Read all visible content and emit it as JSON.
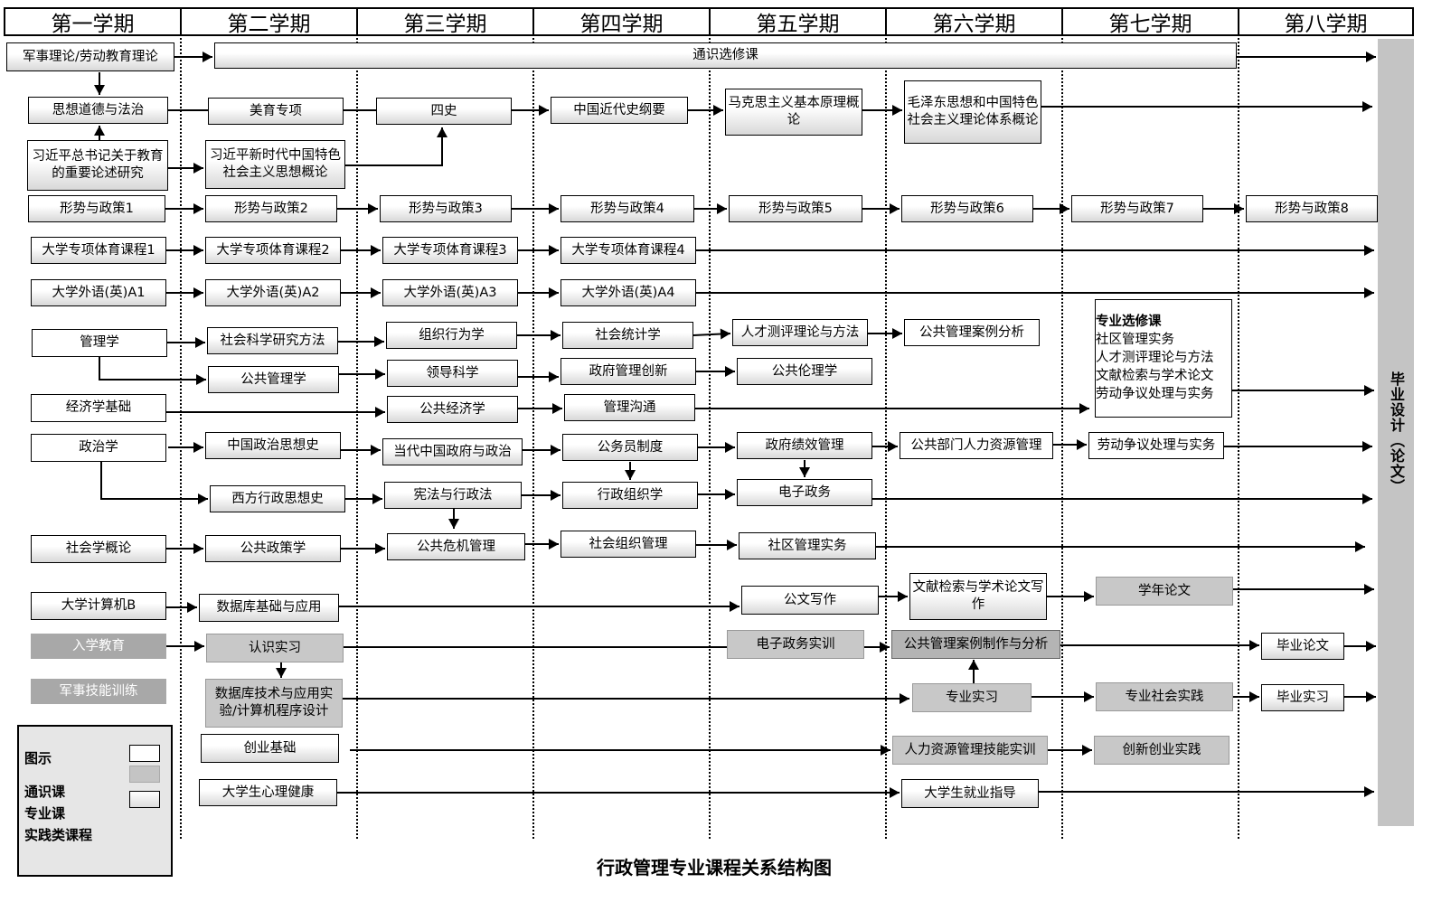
{
  "semesters": [
    "第一学期",
    "第二学期",
    "第三学期",
    "第四学期",
    "第五学期",
    "第六学期",
    "第七学期",
    "第八学期"
  ],
  "courses": [
    {
      "label": "军事理论/劳动教育理论",
      "type": "general"
    },
    {
      "label": "通识选修课",
      "type": "general"
    },
    {
      "label": "思想道德与法治",
      "type": "general"
    },
    {
      "label": "美育专项",
      "type": "general"
    },
    {
      "label": "四史",
      "type": "general"
    },
    {
      "label": "中国近代史纲要",
      "type": "general"
    },
    {
      "label": "马克思主义基本原理概论",
      "type": "general"
    },
    {
      "label": "毛泽东思想和中国特色社会主义理论体系概论",
      "type": "general"
    },
    {
      "label": "习近平总书记关于教育的重要论述研究",
      "type": "general"
    },
    {
      "label": "习近平新时代中国特色社会主义思想概论",
      "type": "general"
    },
    {
      "label": "形势与政策1",
      "type": "general"
    },
    {
      "label": "形势与政策2",
      "type": "general"
    },
    {
      "label": "形势与政策3",
      "type": "general"
    },
    {
      "label": "形势与政策4",
      "type": "general"
    },
    {
      "label": "形势与政策5",
      "type": "general"
    },
    {
      "label": "形势与政策6",
      "type": "general"
    },
    {
      "label": "形势与政策7",
      "type": "general"
    },
    {
      "label": "形势与政策8",
      "type": "general"
    },
    {
      "label": "大学专项体育课程1",
      "type": "general"
    },
    {
      "label": "大学专项体育课程2",
      "type": "general"
    },
    {
      "label": "大学专项体育课程3",
      "type": "general"
    },
    {
      "label": "大学专项体育课程4",
      "type": "general"
    },
    {
      "label": "大学外语(英)A1",
      "type": "general"
    },
    {
      "label": "大学外语(英)A2",
      "type": "general"
    },
    {
      "label": "大学外语(英)A3",
      "type": "general"
    },
    {
      "label": "大学外语(英)A4",
      "type": "general"
    },
    {
      "label": "管理学",
      "type": "major"
    },
    {
      "label": "社会科学研究方法",
      "type": "major"
    },
    {
      "label": "组织行为学",
      "type": "major"
    },
    {
      "label": "社会统计学",
      "type": "major"
    },
    {
      "label": "人才测评理论与方法",
      "type": "major"
    },
    {
      "label": "公共管理案例分析",
      "type": "major"
    },
    {
      "label": "公共管理学",
      "type": "major"
    },
    {
      "label": "领导科学",
      "type": "major"
    },
    {
      "label": "政府管理创新",
      "type": "major"
    },
    {
      "label": "公共伦理学",
      "type": "major"
    },
    {
      "label": "经济学基础",
      "type": "major"
    },
    {
      "label": "公共经济学",
      "type": "major"
    },
    {
      "label": "管理沟通",
      "type": "major"
    },
    {
      "label": "政治学",
      "type": "major"
    },
    {
      "label": "中国政治思想史",
      "type": "major"
    },
    {
      "label": "当代中国政府与政治",
      "type": "major"
    },
    {
      "label": "公务员制度",
      "type": "major"
    },
    {
      "label": "政府绩效管理",
      "type": "major"
    },
    {
      "label": "公共部门人力资源管理",
      "type": "major"
    },
    {
      "label": "劳动争议处理与实务",
      "type": "major"
    },
    {
      "label": "西方行政思想史",
      "type": "major"
    },
    {
      "label": "宪法与行政法",
      "type": "major"
    },
    {
      "label": "行政组织学",
      "type": "major"
    },
    {
      "label": "电子政务",
      "type": "major"
    },
    {
      "label": "社会学概论",
      "type": "major"
    },
    {
      "label": "公共政策学",
      "type": "major"
    },
    {
      "label": "公共危机管理",
      "type": "major"
    },
    {
      "label": "社会组织管理",
      "type": "major"
    },
    {
      "label": "社区管理实务",
      "type": "major"
    },
    {
      "label": "大学计算机B",
      "type": "general"
    },
    {
      "label": "数据库基础与应用",
      "type": "general"
    },
    {
      "label": "公文写作",
      "type": "major"
    },
    {
      "label": "文献检索与学术论文写作",
      "type": "major"
    },
    {
      "label": "学年论文",
      "type": "practice"
    },
    {
      "label": "入学教育",
      "type": "practice-dark"
    },
    {
      "label": "认识实习",
      "type": "practice"
    },
    {
      "label": "电子政务实训",
      "type": "practice"
    },
    {
      "label": "公共管理案例制作与分析",
      "type": "practice"
    },
    {
      "label": "毕业论文",
      "type": "general"
    },
    {
      "label": "军事技能训练",
      "type": "practice-dark"
    },
    {
      "label": "数据库技术与应用实验/计算机程序设计",
      "type": "practice"
    },
    {
      "label": "专业实习",
      "type": "practice"
    },
    {
      "label": "专业社会实践",
      "type": "practice"
    },
    {
      "label": "毕业实习",
      "type": "general"
    },
    {
      "label": "创业基础",
      "type": "general"
    },
    {
      "label": "人力资源管理技能实训",
      "type": "practice"
    },
    {
      "label": "创新创业实践",
      "type": "practice"
    },
    {
      "label": "大学生心理健康",
      "type": "general"
    },
    {
      "label": "大学生就业指导",
      "type": "general"
    }
  ],
  "electives": {
    "title": "专业选修课",
    "items": [
      "社区管理实务",
      "人才测评理论与方法",
      "文献检索与学术论文",
      "劳动争议处理与实务"
    ]
  },
  "graduation": "毕业设计（论文）",
  "legend": {
    "title": "图示",
    "items": [
      "通识课",
      "专业课",
      "实践类课程"
    ]
  },
  "title": "行政管理专业课程关系结构图"
}
